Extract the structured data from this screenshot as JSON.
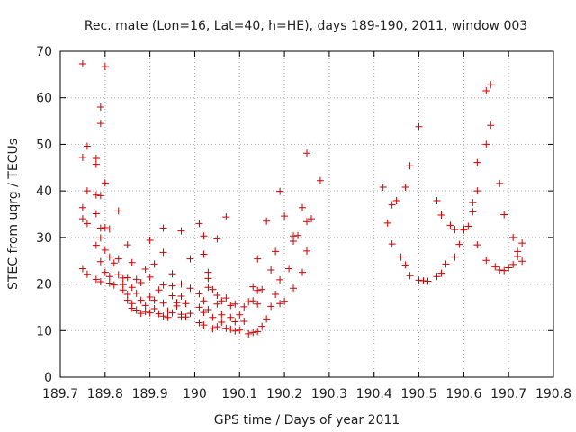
{
  "chart_data": {
    "type": "scatter",
    "title": "Rec. mate (Lon=16, Lat=40, h=HE), days 189-190, 2011, window 003",
    "xlabel": "GPS time / Days of year 2011",
    "ylabel": "STEC from uqrg / TECUs",
    "xlim": [
      189.7,
      190.8
    ],
    "ylim": [
      0,
      70
    ],
    "xticks": [
      189.7,
      189.8,
      189.9,
      190,
      190.1,
      190.2,
      190.3,
      190.4,
      190.5,
      190.6,
      190.7,
      190.8
    ],
    "xtick_labels": [
      "189.7",
      "189.8",
      "189.9",
      "190",
      "190.1",
      "190.2",
      "190.3",
      "190.4",
      "190.5",
      "190.6",
      "190.7",
      "190.8"
    ],
    "yticks": [
      0,
      10,
      20,
      30,
      40,
      50,
      60,
      70
    ],
    "ytick_labels": [
      "0",
      "10",
      "20",
      "30",
      "40",
      "50",
      "60",
      "70"
    ],
    "grid": true,
    "marker": "+",
    "series": [
      {
        "color": "#cc0000",
        "points": [
          [
            189.75,
            67.3
          ],
          [
            189.76,
            49.6
          ],
          [
            189.75,
            47.2
          ],
          [
            189.78,
            47.0
          ],
          [
            189.78,
            45.7
          ],
          [
            189.76,
            40.0
          ],
          [
            189.78,
            39.1
          ],
          [
            189.79,
            39.0
          ],
          [
            189.75,
            36.4
          ],
          [
            189.78,
            35.1
          ],
          [
            189.75,
            34.0
          ],
          [
            189.76,
            33.0
          ],
          [
            189.79,
            32.0
          ],
          [
            189.78,
            28.3
          ],
          [
            189.79,
            29.9
          ],
          [
            189.79,
            24.8
          ],
          [
            189.75,
            23.3
          ],
          [
            189.76,
            22.1
          ],
          [
            189.78,
            21.0
          ],
          [
            189.79,
            20.5
          ],
          [
            189.79,
            58.0
          ],
          [
            189.79,
            54.5
          ],
          [
            189.8,
            66.7
          ],
          [
            189.8,
            41.7
          ],
          [
            189.8,
            32.1
          ],
          [
            189.81,
            31.8
          ],
          [
            189.8,
            27.3
          ],
          [
            189.81,
            25.8
          ],
          [
            189.8,
            22.5
          ],
          [
            189.81,
            21.6
          ],
          [
            189.81,
            20.2
          ],
          [
            189.82,
            19.8
          ],
          [
            189.83,
            35.7
          ],
          [
            189.83,
            25.4
          ],
          [
            189.82,
            24.5
          ],
          [
            189.83,
            22.0
          ],
          [
            189.84,
            21.3
          ],
          [
            189.84,
            19.9
          ],
          [
            189.85,
            28.4
          ],
          [
            189.86,
            24.6
          ],
          [
            189.85,
            21.4
          ],
          [
            189.86,
            19.3
          ],
          [
            189.84,
            18.7
          ],
          [
            189.85,
            17.8
          ],
          [
            189.85,
            16.5
          ],
          [
            189.86,
            15.8
          ],
          [
            189.86,
            14.8
          ],
          [
            189.87,
            14.4
          ],
          [
            189.87,
            21.0
          ],
          [
            189.88,
            20.3
          ],
          [
            189.87,
            18.0
          ],
          [
            189.88,
            16.5
          ],
          [
            189.89,
            15.4
          ],
          [
            189.89,
            14.1
          ],
          [
            189.88,
            13.7
          ],
          [
            189.9,
            13.8
          ],
          [
            189.89,
            23.2
          ],
          [
            189.9,
            29.4
          ],
          [
            189.91,
            24.3
          ],
          [
            189.9,
            21.5
          ],
          [
            189.9,
            17.2
          ],
          [
            189.91,
            16.5
          ],
          [
            189.91,
            14.7
          ],
          [
            189.92,
            13.6
          ],
          [
            189.93,
            32.0
          ],
          [
            189.93,
            26.8
          ],
          [
            189.93,
            19.8
          ],
          [
            189.92,
            18.7
          ],
          [
            189.93,
            15.9
          ],
          [
            189.94,
            14.2
          ],
          [
            189.93,
            13.1
          ],
          [
            189.94,
            12.8
          ],
          [
            189.95,
            22.2
          ],
          [
            189.95,
            19.6
          ],
          [
            189.95,
            17.5
          ],
          [
            189.96,
            16.0
          ],
          [
            189.96,
            15.3
          ],
          [
            189.95,
            13.8
          ],
          [
            189.97,
            13.5
          ],
          [
            189.97,
            12.9
          ],
          [
            189.97,
            31.4
          ],
          [
            189.97,
            20.0
          ],
          [
            189.97,
            17.4
          ],
          [
            189.98,
            15.8
          ],
          [
            189.99,
            25.4
          ],
          [
            189.99,
            19.1
          ],
          [
            189.99,
            13.7
          ],
          [
            189.98,
            12.9
          ],
          [
            190.01,
            33.0
          ],
          [
            190.02,
            30.3
          ],
          [
            190.02,
            26.4
          ],
          [
            190.01,
            17.9
          ],
          [
            190.02,
            16.4
          ],
          [
            190.01,
            15.0
          ],
          [
            190.02,
            13.9
          ],
          [
            190.01,
            11.7
          ],
          [
            190.03,
            22.5
          ],
          [
            190.03,
            21.2
          ],
          [
            190.03,
            19.3
          ],
          [
            190.04,
            18.8
          ],
          [
            190.03,
            14.5
          ],
          [
            190.04,
            12.8
          ],
          [
            190.02,
            11.2
          ],
          [
            190.04,
            10.4
          ],
          [
            190.05,
            29.7
          ],
          [
            190.05,
            17.6
          ],
          [
            190.06,
            16.4
          ],
          [
            190.05,
            15.7
          ],
          [
            190.06,
            13.4
          ],
          [
            190.06,
            11.8
          ],
          [
            190.05,
            10.8
          ],
          [
            190.07,
            10.5
          ],
          [
            190.07,
            34.4
          ],
          [
            190.07,
            17.0
          ],
          [
            190.08,
            15.4
          ],
          [
            190.08,
            12.8
          ],
          [
            190.09,
            11.9
          ],
          [
            190.08,
            10.3
          ],
          [
            190.09,
            9.9
          ],
          [
            190.1,
            10.1
          ],
          [
            190.09,
            15.7
          ],
          [
            190.11,
            15.1
          ],
          [
            190.1,
            13.4
          ],
          [
            190.11,
            12.0
          ],
          [
            190.12,
            16.2
          ],
          [
            190.13,
            16.4
          ],
          [
            190.12,
            9.3
          ],
          [
            190.13,
            9.6
          ],
          [
            190.13,
            19.4
          ],
          [
            190.14,
            25.4
          ],
          [
            190.14,
            18.6
          ],
          [
            190.15,
            18.8
          ],
          [
            190.14,
            15.7
          ],
          [
            190.15,
            10.9
          ],
          [
            190.14,
            9.8
          ],
          [
            190.16,
            33.5
          ],
          [
            190.17,
            23.0
          ],
          [
            190.17,
            15.2
          ],
          [
            190.16,
            12.5
          ],
          [
            190.18,
            27.0
          ],
          [
            190.18,
            17.8
          ],
          [
            190.19,
            20.9
          ],
          [
            190.19,
            15.8
          ],
          [
            190.19,
            39.9
          ],
          [
            190.2,
            34.6
          ],
          [
            190.21,
            23.3
          ],
          [
            190.2,
            16.3
          ],
          [
            190.22,
            30.3
          ],
          [
            190.22,
            29.2
          ],
          [
            190.22,
            19.1
          ],
          [
            190.23,
            30.4
          ],
          [
            190.24,
            22.5
          ],
          [
            190.24,
            36.4
          ],
          [
            190.25,
            33.4
          ],
          [
            190.25,
            48.1
          ],
          [
            190.25,
            27.1
          ],
          [
            190.26,
            34.0
          ],
          [
            190.28,
            42.2
          ],
          [
            190.42,
            40.8
          ],
          [
            190.43,
            33.1
          ],
          [
            190.44,
            37.0
          ],
          [
            190.44,
            28.6
          ],
          [
            190.45,
            37.9
          ],
          [
            190.46,
            25.8
          ],
          [
            190.47,
            40.8
          ],
          [
            190.47,
            24.1
          ],
          [
            190.48,
            45.4
          ],
          [
            190.48,
            21.8
          ],
          [
            190.5,
            53.8
          ],
          [
            190.5,
            20.8
          ],
          [
            190.51,
            20.7
          ],
          [
            190.52,
            20.6
          ],
          [
            190.54,
            21.6
          ],
          [
            190.54,
            37.9
          ],
          [
            190.55,
            22.3
          ],
          [
            190.55,
            34.8
          ],
          [
            190.56,
            24.3
          ],
          [
            190.57,
            32.6
          ],
          [
            190.58,
            25.8
          ],
          [
            190.58,
            31.7
          ],
          [
            190.59,
            28.5
          ],
          [
            190.6,
            31.6
          ],
          [
            190.61,
            32.4
          ],
          [
            190.6,
            31.8
          ],
          [
            190.62,
            37.5
          ],
          [
            190.62,
            35.5
          ],
          [
            190.63,
            28.4
          ],
          [
            190.63,
            40.0
          ],
          [
            190.63,
            46.1
          ],
          [
            190.65,
            25.1
          ],
          [
            190.65,
            50.0
          ],
          [
            190.65,
            61.5
          ],
          [
            190.66,
            62.8
          ],
          [
            190.66,
            54.1
          ],
          [
            190.67,
            23.7
          ],
          [
            190.68,
            41.6
          ],
          [
            190.68,
            23.0
          ],
          [
            190.69,
            22.9
          ],
          [
            190.69,
            34.9
          ],
          [
            190.7,
            23.5
          ],
          [
            190.71,
            30.0
          ],
          [
            190.71,
            24.2
          ],
          [
            190.72,
            25.9
          ],
          [
            190.72,
            27.0
          ],
          [
            190.73,
            28.8
          ],
          [
            190.73,
            24.9
          ]
        ]
      }
    ]
  }
}
